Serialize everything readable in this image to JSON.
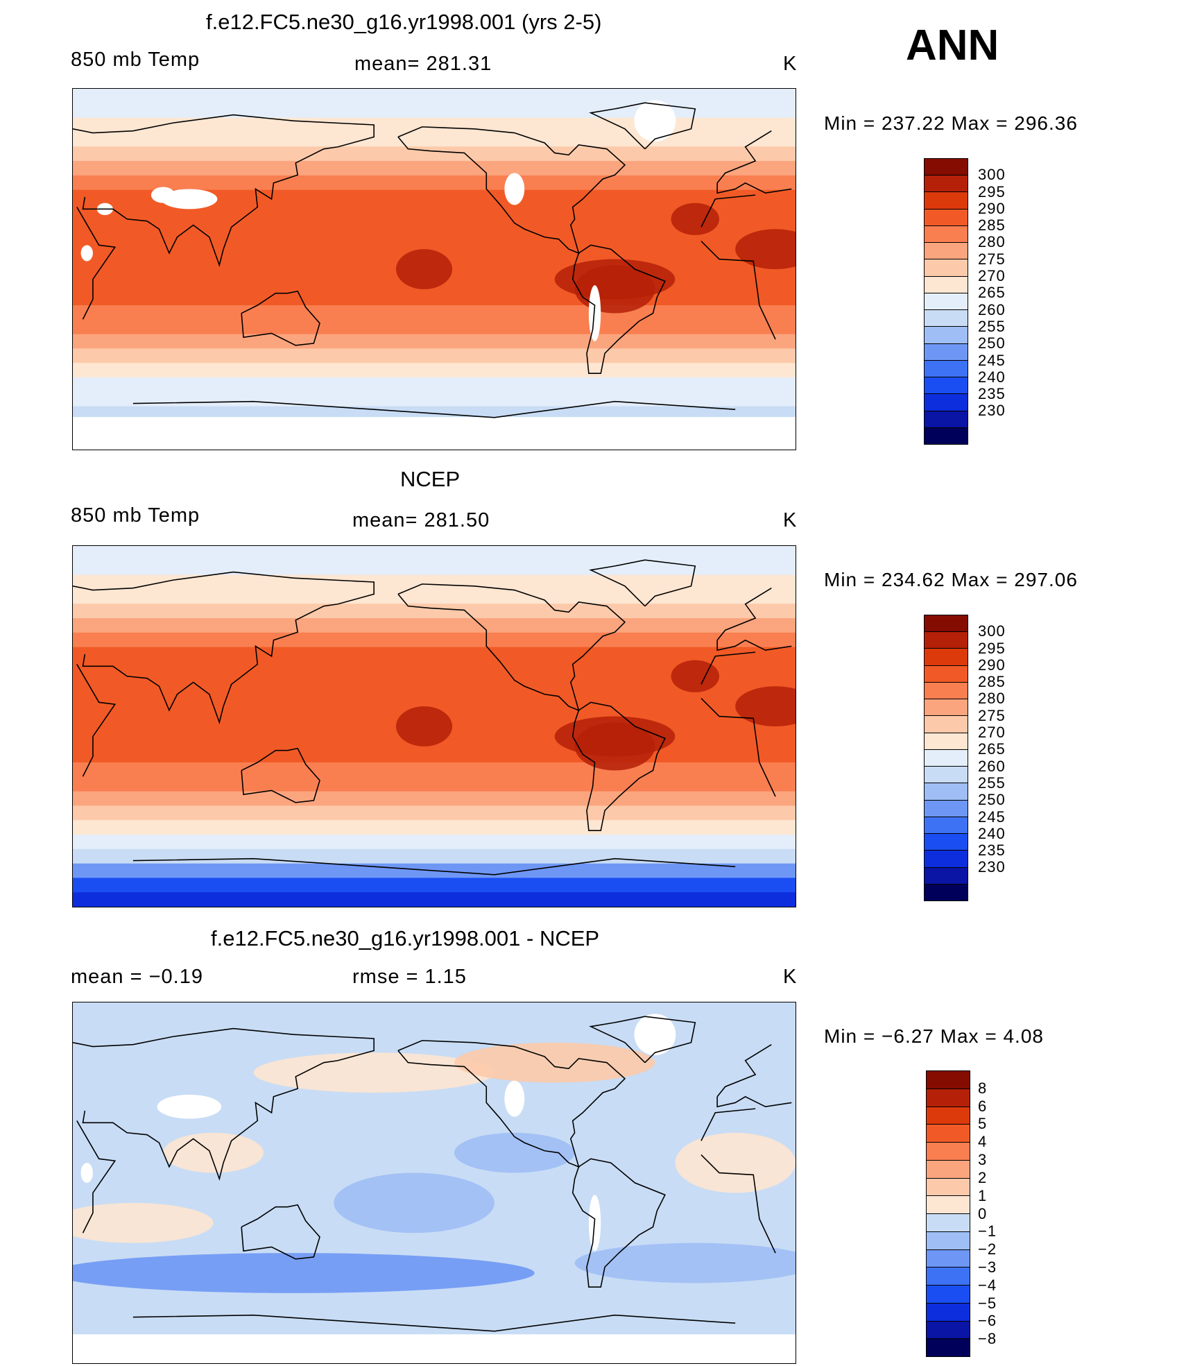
{
  "season": "ANN",
  "colors": {
    "temp_scale": [
      "#00005a",
      "#0a14a5",
      "#0d2edc",
      "#1a4ef2",
      "#3d72f5",
      "#6e97f5",
      "#9ebef5",
      "#c8dcf5",
      "#e4eefa",
      "#fde6d2",
      "#fccaaa",
      "#fba57e",
      "#f97f51",
      "#f15a26",
      "#dd3a0c",
      "#b52008",
      "#840c00"
    ],
    "diff_scale": [
      "#00005a",
      "#0a14a5",
      "#0d2edc",
      "#1a4ef2",
      "#3d72f5",
      "#6e97f5",
      "#9ebef5",
      "#c8dcf5",
      "#fde6d2",
      "#fccaaa",
      "#fba57e",
      "#f97f51",
      "#f15a26",
      "#dd3a0c",
      "#b52008",
      "#840c00"
    ],
    "missing": "#ffffff",
    "coastline": "#000000"
  },
  "panels": [
    {
      "title": "f.e12.FC5.ne30_g16.yr1998.001 (yrs 2-5)",
      "left": "850 mb Temp",
      "center": "mean=  281.31",
      "right": "K",
      "minmax": "Min  =  237.22  Max  =  296.36",
      "kind": "model"
    },
    {
      "title": "NCEP",
      "left": "850 mb Temp",
      "center": "mean=  281.50",
      "right": "K",
      "minmax": "Min  =  234.62  Max  =  297.06",
      "kind": "obs"
    },
    {
      "title": "f.e12.FC5.ne30_g16.yr1998.001 - NCEP",
      "left": "mean  =    −0.19",
      "center": "rmse  =     1.15",
      "right": "K",
      "minmax": "Min  =    −6.27  Max  =      4.08",
      "kind": "diff"
    }
  ],
  "temp_levels": [
    "300",
    "295",
    "290",
    "285",
    "280",
    "275",
    "270",
    "265",
    "260",
    "255",
    "250",
    "245",
    "240",
    "235",
    "230"
  ],
  "diff_levels": [
    "8",
    "6",
    "5",
    "4",
    "3",
    "2",
    "1",
    "0",
    "−1",
    "−2",
    "−3",
    "−4",
    "−5",
    "−6",
    "−8"
  ]
}
